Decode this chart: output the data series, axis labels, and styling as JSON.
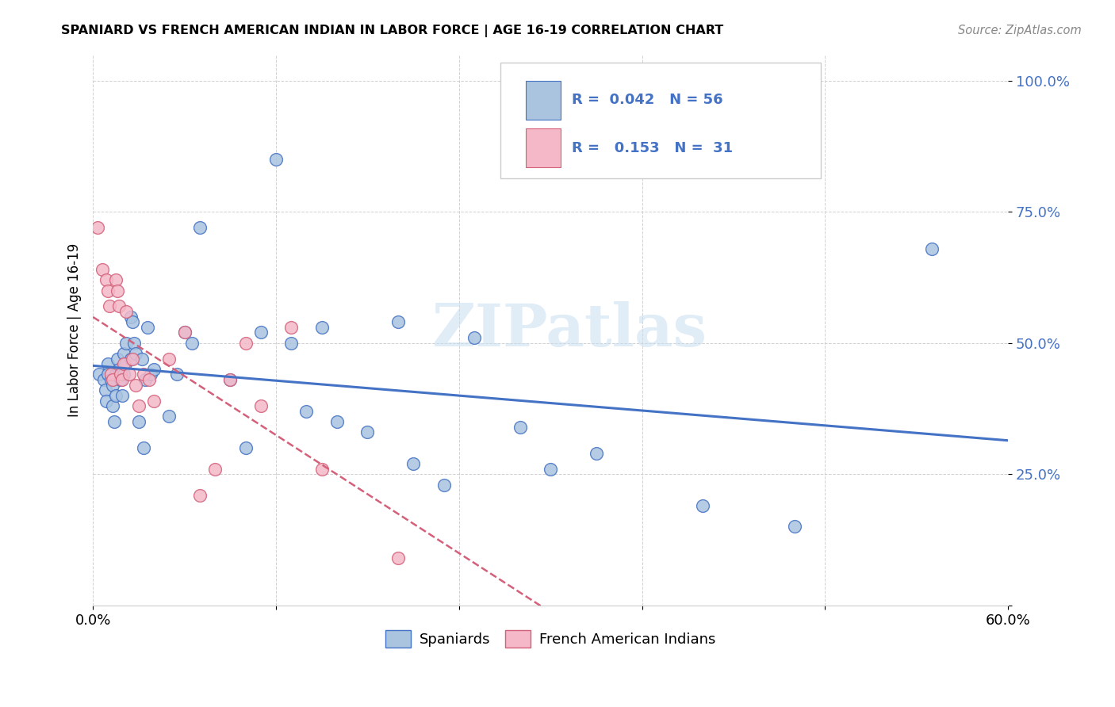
{
  "title": "SPANIARD VS FRENCH AMERICAN INDIAN IN LABOR FORCE | AGE 16-19 CORRELATION CHART",
  "source": "Source: ZipAtlas.com",
  "ylabel": "In Labor Force | Age 16-19",
  "xlim": [
    0.0,
    0.6
  ],
  "ylim": [
    0.0,
    1.05
  ],
  "ytick_labels": [
    "",
    "25.0%",
    "50.0%",
    "75.0%",
    "100.0%"
  ],
  "ytick_values": [
    0.0,
    0.25,
    0.5,
    0.75,
    1.0
  ],
  "xtick_labels": [
    "0.0%",
    "",
    "",
    "",
    "",
    "60.0%"
  ],
  "xtick_values": [
    0.0,
    0.12,
    0.24,
    0.36,
    0.48,
    0.6
  ],
  "spaniard_R": 0.042,
  "spaniard_N": 56,
  "french_R": 0.153,
  "french_N": 31,
  "spaniard_color": "#aac4e0",
  "french_color": "#f4b8c8",
  "trend_spaniard_color": "#4472c4",
  "trend_french_color": "#d4607a",
  "watermark": "ZIPatlas",
  "spaniard_x": [
    0.004,
    0.007,
    0.008,
    0.009,
    0.01,
    0.01,
    0.012,
    0.013,
    0.013,
    0.014,
    0.015,
    0.015,
    0.016,
    0.017,
    0.018,
    0.019,
    0.02,
    0.02,
    0.021,
    0.022,
    0.025,
    0.025,
    0.026,
    0.027,
    0.028,
    0.03,
    0.032,
    0.033,
    0.034,
    0.036,
    0.038,
    0.04,
    0.05,
    0.055,
    0.06,
    0.065,
    0.07,
    0.09,
    0.1,
    0.11,
    0.12,
    0.13,
    0.14,
    0.15,
    0.16,
    0.18,
    0.2,
    0.21,
    0.23,
    0.25,
    0.28,
    0.3,
    0.33,
    0.4,
    0.46,
    0.55
  ],
  "spaniard_y": [
    0.44,
    0.43,
    0.41,
    0.39,
    0.46,
    0.44,
    0.43,
    0.42,
    0.38,
    0.35,
    0.44,
    0.4,
    0.47,
    0.45,
    0.43,
    0.4,
    0.48,
    0.44,
    0.46,
    0.5,
    0.55,
    0.47,
    0.54,
    0.5,
    0.48,
    0.35,
    0.47,
    0.3,
    0.43,
    0.53,
    0.44,
    0.45,
    0.36,
    0.44,
    0.52,
    0.5,
    0.72,
    0.43,
    0.3,
    0.52,
    0.85,
    0.5,
    0.37,
    0.53,
    0.35,
    0.33,
    0.54,
    0.27,
    0.23,
    0.51,
    0.34,
    0.26,
    0.29,
    0.19,
    0.15,
    0.68
  ],
  "french_x": [
    0.003,
    0.006,
    0.009,
    0.01,
    0.011,
    0.012,
    0.013,
    0.015,
    0.016,
    0.017,
    0.018,
    0.019,
    0.02,
    0.022,
    0.024,
    0.026,
    0.028,
    0.03,
    0.033,
    0.037,
    0.04,
    0.05,
    0.06,
    0.07,
    0.08,
    0.09,
    0.1,
    0.11,
    0.13,
    0.15,
    0.2
  ],
  "french_y": [
    0.72,
    0.64,
    0.62,
    0.6,
    0.57,
    0.44,
    0.43,
    0.62,
    0.6,
    0.57,
    0.44,
    0.43,
    0.46,
    0.56,
    0.44,
    0.47,
    0.42,
    0.38,
    0.44,
    0.43,
    0.39,
    0.47,
    0.52,
    0.21,
    0.26,
    0.43,
    0.5,
    0.38,
    0.53,
    0.26,
    0.09
  ]
}
